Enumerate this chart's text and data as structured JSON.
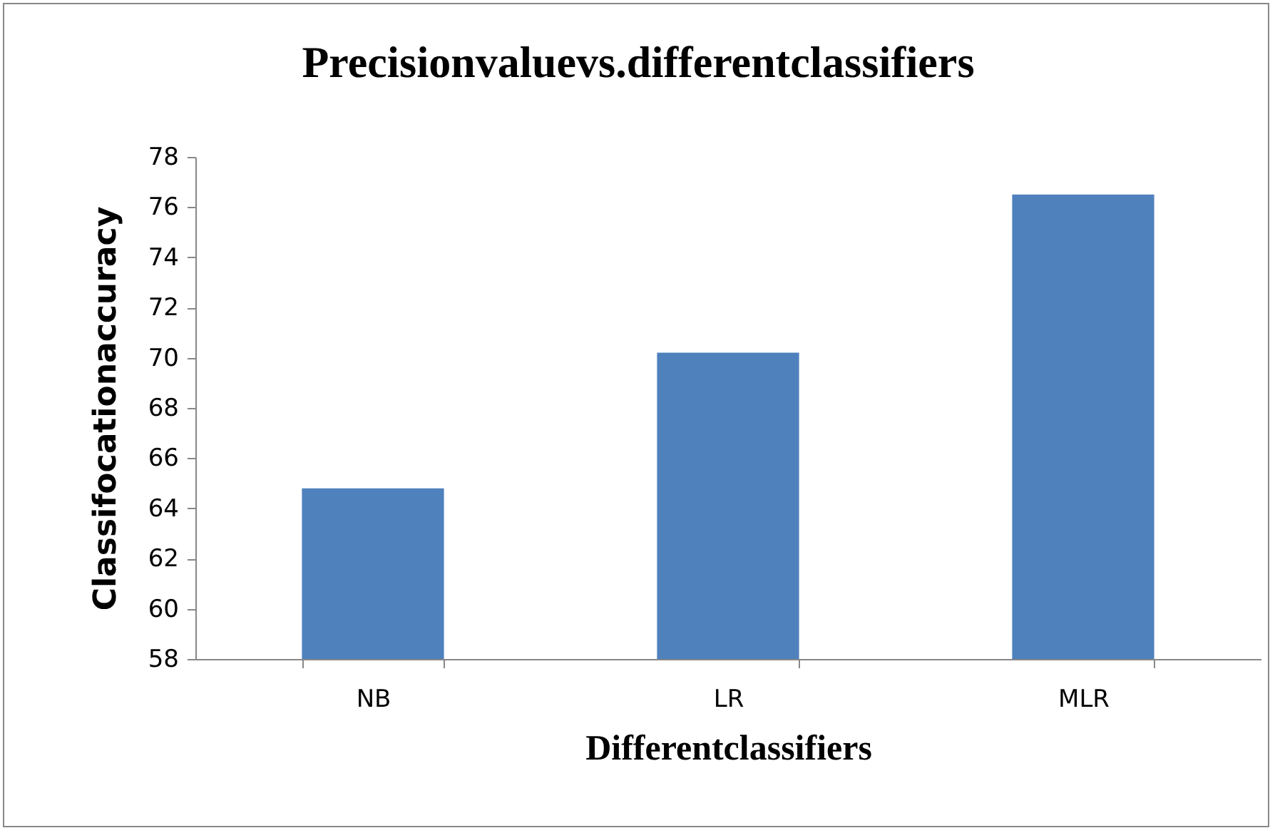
{
  "chart_data": {
    "type": "bar",
    "title": "Precisionvaluevs.differentclassifiers",
    "xlabel": "Differentclassifiers",
    "ylabel": "Classifocationaccuracy",
    "categories": [
      "NB",
      "LR",
      "MLR"
    ],
    "values": [
      64.8,
      70.2,
      76.5
    ],
    "color": "#4f81bd",
    "ylim": [
      58,
      78
    ],
    "yticks": [
      58,
      60,
      62,
      64,
      66,
      68,
      70,
      72,
      74,
      76,
      78
    ],
    "grid": false
  }
}
